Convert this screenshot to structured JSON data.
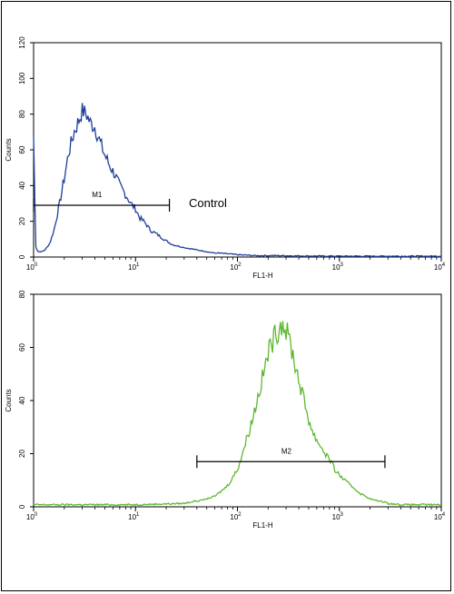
{
  "chart_data": [
    {
      "type": "line",
      "xlabel": "FL1-H",
      "ylabel": "Counts",
      "xscale": "log",
      "xlim": [
        1,
        10000
      ],
      "ylim": [
        0,
        120
      ],
      "x_ticks": [
        {
          "value": 1,
          "base": "10",
          "exp": "0"
        },
        {
          "value": 10,
          "base": "10",
          "exp": "1"
        },
        {
          "value": 100,
          "base": "10",
          "exp": "2"
        },
        {
          "value": 1000,
          "base": "10",
          "exp": "3"
        },
        {
          "value": 10000,
          "base": "10",
          "exp": "4"
        }
      ],
      "y_ticks": [
        "0",
        "20",
        "40",
        "60",
        "80",
        "100",
        "120"
      ],
      "series": [
        {
          "color": "#1f3f9a",
          "x": [
            1.0,
            1.05,
            1.1,
            1.2,
            1.3,
            1.45,
            1.6,
            1.8,
            2.0,
            2.2,
            2.5,
            2.8,
            3.0,
            3.3,
            3.6,
            4.0,
            4.5,
            5.0,
            5.6,
            6.3,
            7.0,
            8.0,
            9.0,
            10,
            11,
            12.5,
            14,
            16,
            18,
            20,
            23,
            27,
            32,
            40,
            50,
            63,
            80,
            100,
            150,
            250,
            500,
            1000,
            3000,
            10000
          ],
          "y": [
            68,
            6,
            3,
            3,
            4,
            8,
            16,
            30,
            44,
            58,
            70,
            77,
            82,
            80,
            75,
            73,
            64,
            57,
            51,
            46,
            40,
            35,
            30,
            27,
            22,
            19,
            15,
            13,
            11,
            9,
            7,
            6,
            5,
            4,
            3,
            2,
            1.5,
            1,
            0.5,
            0.5,
            0.3,
            0.2,
            0.2,
            0.2
          ]
        }
      ],
      "markers": [
        {
          "label": "M1",
          "x_start": 1.0,
          "x_end": 21.5,
          "y": 29
        }
      ],
      "annotation": "Control"
    },
    {
      "type": "line",
      "xlabel": "FL1-H",
      "ylabel": "Counts",
      "xscale": "log",
      "xlim": [
        1,
        10000
      ],
      "ylim": [
        0,
        80
      ],
      "x_ticks": [
        {
          "value": 1,
          "base": "10",
          "exp": "0"
        },
        {
          "value": 10,
          "base": "10",
          "exp": "1"
        },
        {
          "value": 100,
          "base": "10",
          "exp": "2"
        },
        {
          "value": 1000,
          "base": "10",
          "exp": "3"
        },
        {
          "value": 10000,
          "base": "10",
          "exp": "4"
        }
      ],
      "y_ticks": [
        "0",
        "20",
        "40",
        "60",
        "80"
      ],
      "series": [
        {
          "color": "#5fb832",
          "x": [
            1.0,
            2.0,
            5.0,
            10,
            20,
            30,
            40,
            50,
            60,
            70,
            80,
            100,
            120,
            140,
            160,
            180,
            200,
            230,
            260,
            280,
            300,
            330,
            360,
            400,
            450,
            500,
            560,
            630,
            700,
            800,
            900,
            1000,
            1200,
            1400,
            1600,
            1800,
            2000,
            2500,
            3000,
            4000,
            6000,
            10000
          ],
          "y": [
            0.5,
            0.5,
            0.5,
            0.5,
            0.8,
            1,
            2,
            3,
            4,
            6,
            8,
            14,
            24,
            33,
            42,
            50,
            58,
            64,
            68,
            70,
            66,
            62,
            55,
            48,
            40,
            33,
            27,
            24,
            21,
            18,
            14,
            12,
            9,
            7,
            5,
            4,
            3,
            2,
            1,
            0.5,
            0.5,
            0.5
          ]
        }
      ],
      "markers": [
        {
          "label": "M2",
          "x_start": 40,
          "x_end": 2800,
          "y": 17
        }
      ]
    }
  ]
}
